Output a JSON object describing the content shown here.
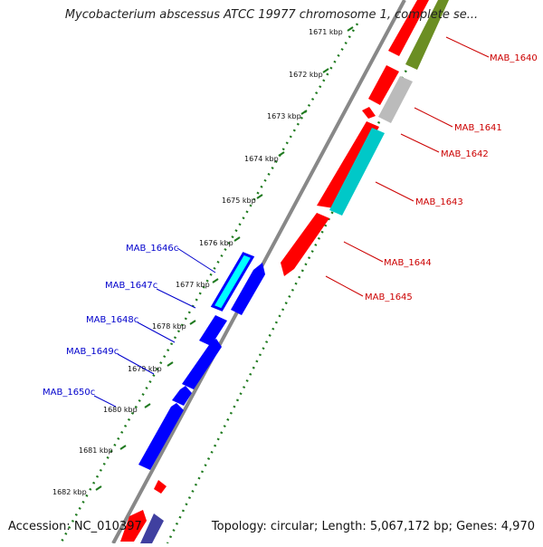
{
  "title": "Mycobacterium abscessus ATCC 19977 chromosome 1, complete se...",
  "footer": {
    "accession": "Accession: NC_010397",
    "summary": "Topology: circular; Length: 5,067,172 bp; Genes: 4,970"
  },
  "colors": {
    "backbone": "#888888",
    "tick": "#1f7a1f",
    "forward_label": "#cc0000",
    "reverse_label": "#0000cc"
  },
  "ticks": [
    "1671 kbp",
    "1672 kbp",
    "1673 kbp",
    "1674 kbp",
    "1675 kbp",
    "1676 kbp",
    "1677 kbp",
    "1678 kbp",
    "1679 kbp",
    "1680 kbp",
    "1681 kbp",
    "1682 kbp"
  ],
  "forward_labels": [
    "MAB_1640",
    "MAB_1641",
    "MAB_1642",
    "MAB_1643",
    "MAB_1644",
    "MAB_1645"
  ],
  "reverse_labels": [
    "MAB_1646c",
    "MAB_1647c",
    "MAB_1648c",
    "MAB_1649c",
    "MAB_1650c"
  ],
  "features": [
    {
      "name": "red-gene-1",
      "color": "#ff0000",
      "strand": "forward",
      "lane": 1
    },
    {
      "name": "olive-gene",
      "color": "#6b8e23",
      "strand": "forward",
      "lane": 2
    },
    {
      "name": "red-gene-2",
      "color": "#ff0000",
      "strand": "forward",
      "lane": 1
    },
    {
      "name": "gray-gene",
      "color": "#bbbbbb",
      "strand": "forward",
      "lane": 2
    },
    {
      "name": "red-gene-3",
      "color": "#ff0000",
      "strand": "forward",
      "lane": 1
    },
    {
      "name": "red-gene-4",
      "color": "#ff0000",
      "strand": "forward",
      "lane": 1
    },
    {
      "name": "cyan-gene",
      "color": "#00c8c8",
      "strand": "forward",
      "lane": 2
    },
    {
      "name": "red-gene-5",
      "color": "#ff0000",
      "strand": "forward",
      "lane": 1
    },
    {
      "name": "cyan-reverse-gene",
      "color": "#00ffff",
      "strand": "reverse",
      "lane": 2
    },
    {
      "name": "blue-gene-1",
      "color": "#0000ff",
      "strand": "reverse",
      "lane": 2
    },
    {
      "name": "blue-gene-2",
      "color": "#0000ff",
      "strand": "reverse",
      "lane": 1
    },
    {
      "name": "blue-gene-3",
      "color": "#0000ff",
      "strand": "reverse",
      "lane": 1
    },
    {
      "name": "blue-gene-4",
      "color": "#0000ff",
      "strand": "reverse",
      "lane": 1
    },
    {
      "name": "blue-gene-5",
      "color": "#0000ff",
      "strand": "reverse",
      "lane": 1
    },
    {
      "name": "blue-gene-6",
      "color": "#0000ff",
      "strand": "reverse",
      "lane": 1
    },
    {
      "name": "red-gene-6",
      "color": "#ff0000",
      "strand": "forward",
      "lane": 1
    },
    {
      "name": "red-gene-7",
      "color": "#ff0000",
      "strand": "forward",
      "lane": 1
    },
    {
      "name": "navy-gene",
      "color": "#4040a0",
      "strand": "forward",
      "lane": 2
    }
  ]
}
